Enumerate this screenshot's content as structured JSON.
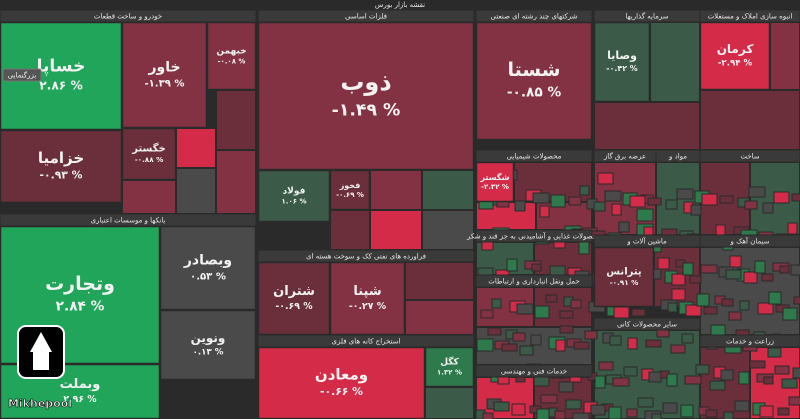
{
  "title": "نقشه بازار بورس",
  "zoom_hint": "بزرگنمایی",
  "watermark": "Mikhepool",
  "sectors": [
    {
      "label": "خودرو و ساخت قطعات",
      "tiles": [
        {
          "name": "خساپا",
          "change": "۲.۸۶ %"
        },
        {
          "name": "خزامیا",
          "change": "-۰.۹۳ %"
        },
        {
          "name": "خاور",
          "change": "-۱.۳۹ %"
        },
        {
          "name": "خگستر",
          "change": "-۰.۸۸ %"
        },
        {
          "name": "خبهمن",
          "change": "-۰.۰۸ %"
        }
      ]
    },
    {
      "label": "بانکها و موسسات اعتباری",
      "tiles": [
        {
          "name": "وتجارت",
          "change": "۲.۸۴ %"
        },
        {
          "name": "وبملت",
          "change": "۲.۹۶ %"
        },
        {
          "name": "وبصادر",
          "change": "۰.۵۳ %"
        },
        {
          "name": "ونوین",
          "change": "۰.۱۳ %"
        }
      ]
    },
    {
      "label": "فلزات اساسی",
      "tiles": [
        {
          "name": "ذوب",
          "change": "-۱.۴۹ %"
        },
        {
          "name": "فولاد",
          "change": "۱.۰۶ %"
        },
        {
          "name": "فخوز",
          "change": "-۰.۶۹ %"
        }
      ]
    },
    {
      "label": "فراورده های نفتی کک و سوخت هسته ای",
      "tiles": [
        {
          "name": "شتران",
          "change": "-۰.۶۹ %"
        },
        {
          "name": "شپنا",
          "change": "-۰.۲۷ %"
        }
      ]
    },
    {
      "label": "استخراج کانه های فلزی",
      "tiles": [
        {
          "name": "ومعادن",
          "change": "-۰.۶۶ %"
        },
        {
          "name": "کگل",
          "change": "۱.۳۲ %"
        }
      ]
    },
    {
      "label": "شرکتهای چند رشته ای صنعتی",
      "tiles": [
        {
          "name": "شستا",
          "change": "-۰.۸۵ %"
        }
      ]
    },
    {
      "label": "محصولات شیمیایی",
      "tiles": [
        {
          "name": "شگستر",
          "change": "-۲.۳۲ %"
        }
      ]
    },
    {
      "label": "محصولات غذایی و آشامیدنی به جز قند و شکر",
      "tiles": []
    },
    {
      "label": "حمل ونقل انبارداری و ارتباطات",
      "tiles": []
    },
    {
      "label": "خدمات فنی و مهندسی",
      "tiles": []
    },
    {
      "label": "سرمایه گذاریها",
      "tiles": [
        {
          "name": "وصایا",
          "change": "-۰.۴۲ %"
        }
      ]
    },
    {
      "label": "انبوه سازی املاک و مستغلات",
      "tiles": [
        {
          "name": "کرمان",
          "change": "-۲.۹۴ %"
        }
      ]
    },
    {
      "label": "عرضه برق گاز",
      "tiles": []
    },
    {
      "label": "مواد و",
      "tiles": []
    },
    {
      "label": "ساخت",
      "tiles": []
    },
    {
      "label": "ماشین آلات و",
      "tiles": [
        {
          "name": "پترانس",
          "change": "-۰.۹۱ %"
        }
      ]
    },
    {
      "label": "سیمان آهک و",
      "tiles": []
    },
    {
      "label": "سایر محصولات کانی",
      "tiles": []
    },
    {
      "label": "زراعت و خدمات",
      "tiles": []
    }
  ]
}
